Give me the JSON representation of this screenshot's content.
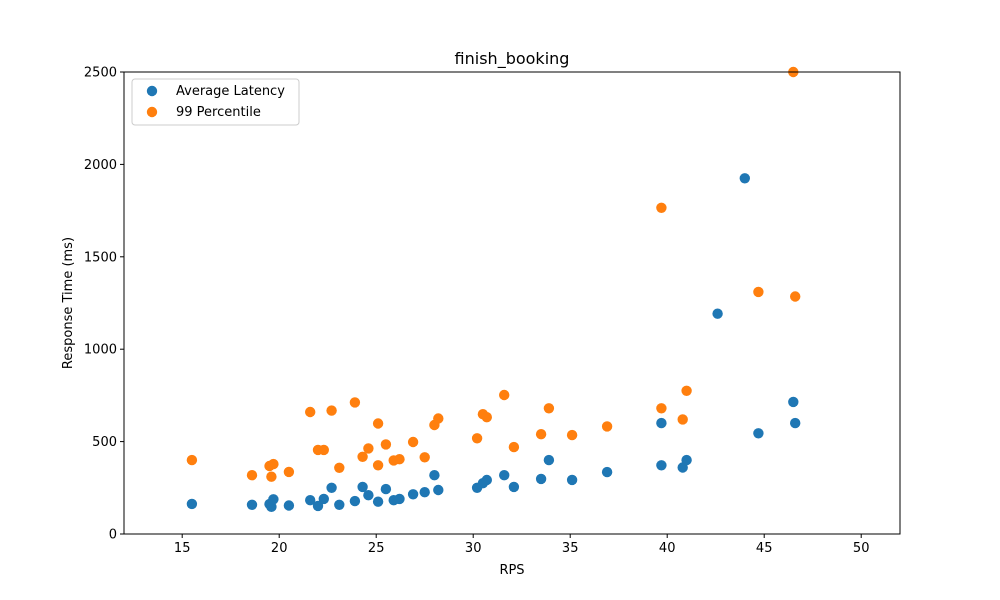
{
  "chart_data": {
    "type": "scatter",
    "title": "finish_booking",
    "xlabel": "RPS",
    "ylabel": "Response Time (ms)",
    "xlim": [
      12,
      52
    ],
    "ylim": [
      0,
      2500
    ],
    "xticks": [
      15,
      20,
      25,
      30,
      35,
      40,
      45,
      50
    ],
    "yticks": [
      0,
      500,
      1000,
      1500,
      2000,
      2500
    ],
    "grid": false,
    "legend_position": "top-left",
    "series": [
      {
        "name": "Average Latency",
        "color": "#1f77b4",
        "points": [
          [
            15.5,
            163
          ],
          [
            18.6,
            158
          ],
          [
            19.5,
            162
          ],
          [
            19.6,
            147
          ],
          [
            19.7,
            188
          ],
          [
            20.5,
            154
          ],
          [
            21.6,
            183
          ],
          [
            22.0,
            152
          ],
          [
            22.3,
            190
          ],
          [
            22.7,
            250
          ],
          [
            23.1,
            158
          ],
          [
            23.9,
            178
          ],
          [
            24.3,
            255
          ],
          [
            24.6,
            210
          ],
          [
            25.1,
            175
          ],
          [
            25.5,
            243
          ],
          [
            25.9,
            183
          ],
          [
            26.2,
            190
          ],
          [
            26.9,
            215
          ],
          [
            27.5,
            226
          ],
          [
            28.0,
            318
          ],
          [
            28.2,
            238
          ],
          [
            30.2,
            250
          ],
          [
            30.5,
            275
          ],
          [
            30.7,
            292
          ],
          [
            31.6,
            318
          ],
          [
            32.1,
            255
          ],
          [
            33.5,
            298
          ],
          [
            33.9,
            400
          ],
          [
            35.1,
            293
          ],
          [
            36.9,
            335
          ],
          [
            39.7,
            600
          ],
          [
            39.7,
            372
          ],
          [
            40.8,
            360
          ],
          [
            41.0,
            400
          ],
          [
            42.6,
            1192
          ],
          [
            44.0,
            1925
          ],
          [
            44.7,
            545
          ],
          [
            46.5,
            715
          ],
          [
            46.6,
            600
          ]
        ]
      },
      {
        "name": "99 Percentile",
        "color": "#ff7f0e",
        "points": [
          [
            15.5,
            400
          ],
          [
            18.6,
            318
          ],
          [
            19.5,
            368
          ],
          [
            19.6,
            310
          ],
          [
            19.7,
            378
          ],
          [
            20.5,
            336
          ],
          [
            21.6,
            660
          ],
          [
            22.0,
            455
          ],
          [
            22.3,
            455
          ],
          [
            22.7,
            668
          ],
          [
            23.1,
            358
          ],
          [
            23.9,
            712
          ],
          [
            24.3,
            418
          ],
          [
            24.6,
            463
          ],
          [
            25.1,
            598
          ],
          [
            25.1,
            372
          ],
          [
            25.5,
            485
          ],
          [
            25.9,
            398
          ],
          [
            26.2,
            405
          ],
          [
            26.9,
            498
          ],
          [
            27.5,
            415
          ],
          [
            28.0,
            590
          ],
          [
            28.2,
            625
          ],
          [
            30.2,
            518
          ],
          [
            30.5,
            648
          ],
          [
            30.7,
            632
          ],
          [
            31.6,
            752
          ],
          [
            32.1,
            470
          ],
          [
            33.5,
            540
          ],
          [
            33.9,
            680
          ],
          [
            35.1,
            535
          ],
          [
            36.9,
            582
          ],
          [
            39.7,
            1765
          ],
          [
            39.7,
            680
          ],
          [
            40.8,
            620
          ],
          [
            41.0,
            775
          ],
          [
            44.7,
            1310
          ],
          [
            46.5,
            2500
          ],
          [
            46.6,
            1285
          ]
        ]
      }
    ]
  }
}
